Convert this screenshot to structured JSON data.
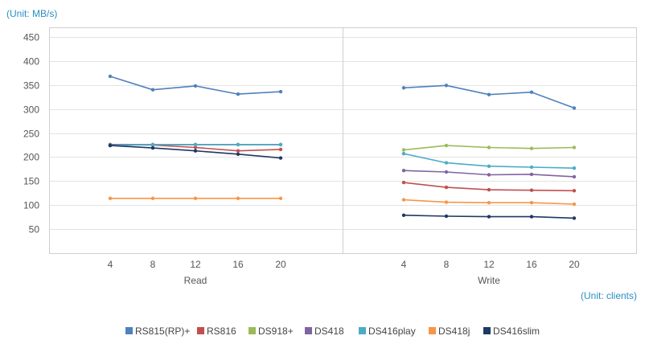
{
  "chart_data": {
    "type": "line",
    "y_unit_label": "(Unit: MB/s)",
    "x_unit_label": "(Unit: clients)",
    "ylim": [
      0,
      470
    ],
    "y_ticks": [
      "50",
      "100",
      "150",
      "200",
      "250",
      "300",
      "350",
      "400",
      "450"
    ],
    "grid": true,
    "legend_position": "bottom",
    "x": [
      "4",
      "8",
      "12",
      "16",
      "20"
    ],
    "panels": [
      {
        "label": "Read",
        "series": [
          {
            "name": "RS815(RP)+",
            "color": "#4f81bd",
            "values": [
              368,
              340,
              348,
              331,
              336
            ]
          },
          {
            "name": "RS816",
            "color": "#c0504d",
            "values": [
              226,
              225,
              220,
              213,
              216
            ]
          },
          {
            "name": "DS918+",
            "color": "#9bbb59",
            "values": [
              226,
              226,
              226,
              226,
              226
            ]
          },
          {
            "name": "DS418",
            "color": "#8064a2",
            "values": [
              226,
              226,
              226,
              226,
              226
            ]
          },
          {
            "name": "DS416play",
            "color": "#4bacc6",
            "values": [
              224,
              226,
              226,
              226,
              226
            ]
          },
          {
            "name": "DS418j",
            "color": "#f79646",
            "values": [
              114,
              114,
              114,
              114,
              114
            ]
          },
          {
            "name": "DS416slim",
            "color": "#1f3864",
            "values": [
              224,
              219,
              213,
              206,
              198
            ]
          }
        ]
      },
      {
        "label": "Write",
        "series": [
          {
            "name": "RS815(RP)+",
            "color": "#4f81bd",
            "values": [
              344,
              349,
              330,
              335,
              302
            ]
          },
          {
            "name": "RS816",
            "color": "#c0504d",
            "values": [
              147,
              137,
              132,
              131,
              130
            ]
          },
          {
            "name": "DS918+",
            "color": "#9bbb59",
            "values": [
              215,
              224,
              220,
              218,
              220
            ]
          },
          {
            "name": "DS418",
            "color": "#8064a2",
            "values": [
              172,
              169,
              163,
              164,
              159
            ]
          },
          {
            "name": "DS416play",
            "color": "#4bacc6",
            "values": [
              207,
              188,
              181,
              179,
              177
            ]
          },
          {
            "name": "DS418j",
            "color": "#f79646",
            "values": [
              111,
              106,
              105,
              105,
              102
            ]
          },
          {
            "name": "DS416slim",
            "color": "#1f3864",
            "values": [
              79,
              77,
              76,
              76,
              73
            ]
          }
        ]
      }
    ]
  }
}
